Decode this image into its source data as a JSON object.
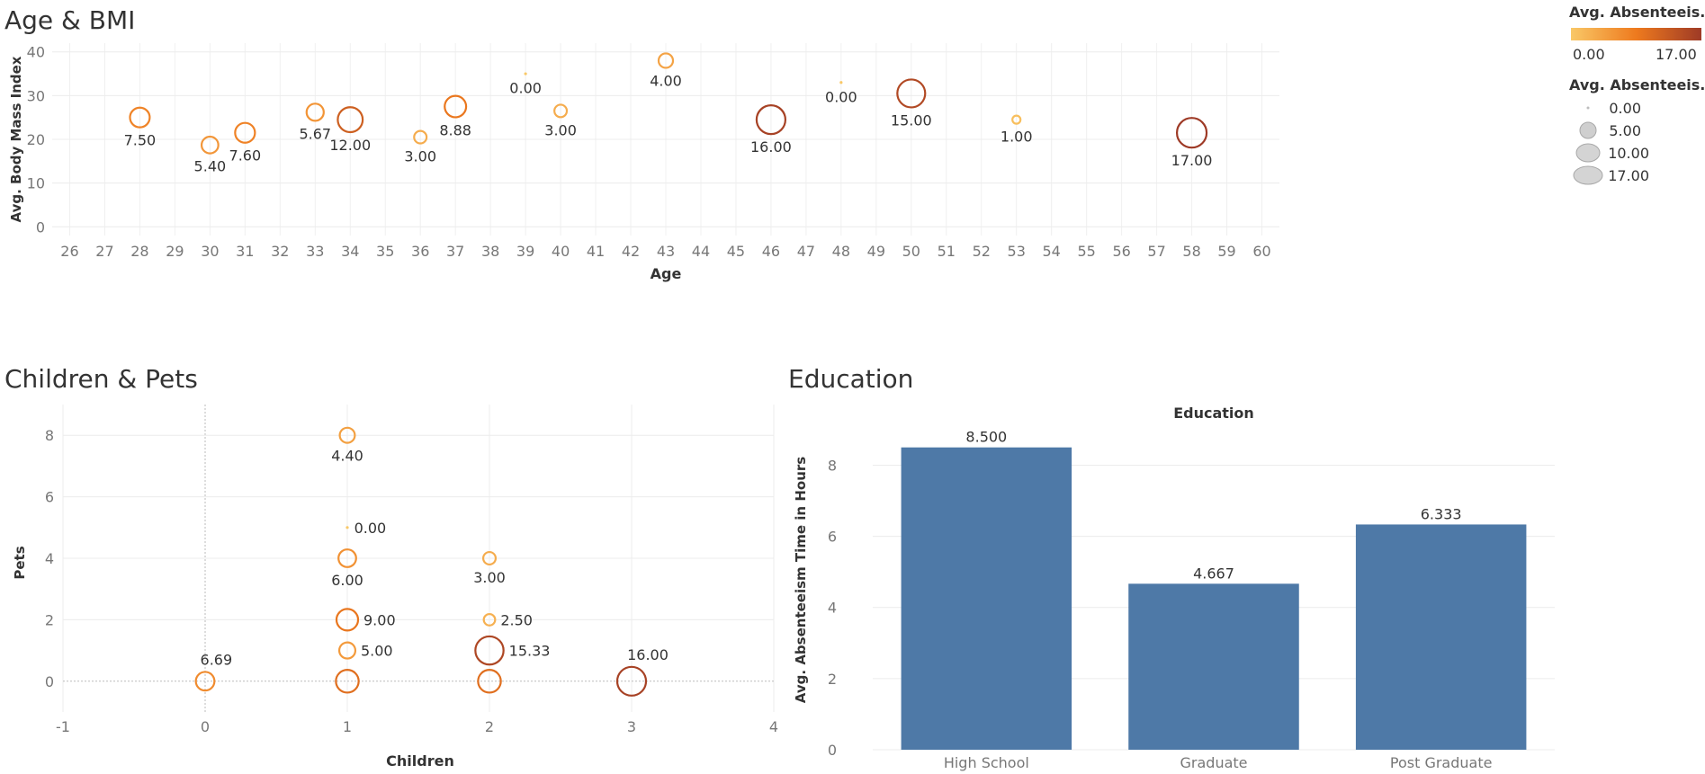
{
  "panes": {
    "age_bmi": {
      "title": "Age & BMI"
    },
    "children_pets": {
      "title": "Children & Pets"
    },
    "education": {
      "title": "Education"
    }
  },
  "legends": {
    "color": {
      "title": "Avg. Absenteeis..",
      "min_label": "0.00",
      "max_label": "17.00",
      "color_low": "#f9c867",
      "color_mid": "#ee7a1e",
      "color_high": "#9e3a26"
    },
    "size": {
      "title": "Avg. Absenteeis..",
      "entries": [
        "0.00",
        "5.00",
        "10.00",
        "17.00"
      ]
    }
  },
  "chart_data": [
    {
      "type": "scatter",
      "title": "Age & BMI",
      "xlabel": "Age",
      "ylabel": "Avg. Body Mass Index",
      "xlim": [
        25.5,
        60.5
      ],
      "ylim": [
        -2,
        42
      ],
      "xticks": [
        26,
        27,
        28,
        29,
        30,
        31,
        32,
        33,
        34,
        35,
        36,
        37,
        38,
        39,
        40,
        41,
        42,
        43,
        44,
        45,
        46,
        47,
        48,
        49,
        50,
        51,
        52,
        53,
        54,
        55,
        56,
        57,
        58,
        59,
        60
      ],
      "yticks": [
        0,
        10,
        20,
        30,
        40
      ],
      "grid": true,
      "size_metric": "Avg. Absenteeism",
      "points": [
        {
          "x": 28,
          "y": 25,
          "v": 7.5,
          "label": "7.50"
        },
        {
          "x": 30,
          "y": 18.7,
          "v": 5.4,
          "label": "5.40"
        },
        {
          "x": 31,
          "y": 21.5,
          "v": 7.6,
          "label": "7.60"
        },
        {
          "x": 33,
          "y": 26.2,
          "v": 5.67,
          "label": "5.67"
        },
        {
          "x": 34,
          "y": 24.5,
          "v": 12.0,
          "label": "12.00"
        },
        {
          "x": 36,
          "y": 20.5,
          "v": 3.0,
          "label": "3.00"
        },
        {
          "x": 37,
          "y": 27.5,
          "v": 8.88,
          "label": "8.88"
        },
        {
          "x": 39,
          "y": 35,
          "v": 0.0,
          "label": "0.00"
        },
        {
          "x": 40,
          "y": 26.5,
          "v": 3.0,
          "label": "3.00"
        },
        {
          "x": 43,
          "y": 38,
          "v": 4.0,
          "label": "4.00"
        },
        {
          "x": 46,
          "y": 24.5,
          "v": 16.0,
          "label": "16.00"
        },
        {
          "x": 48,
          "y": 33,
          "v": 0.0,
          "label": "0.00"
        },
        {
          "x": 50,
          "y": 30.5,
          "v": 15.0,
          "label": "15.00"
        },
        {
          "x": 53,
          "y": 24.5,
          "v": 1.0,
          "label": "1.00"
        },
        {
          "x": 58,
          "y": 21.5,
          "v": 17.0,
          "label": "17.00"
        }
      ]
    },
    {
      "type": "scatter",
      "title": "Children & Pets",
      "xlabel": "Children",
      "ylabel": "Pets",
      "xlim": [
        -1,
        4
      ],
      "ylim": [
        -1,
        9
      ],
      "xticks": [
        -1,
        0,
        1,
        2,
        3,
        4
      ],
      "yticks": [
        0,
        2,
        4,
        6,
        8
      ],
      "grid": true,
      "size_metric": "Avg. Absenteeism",
      "points": [
        {
          "x": 0,
          "y": 0,
          "v": 6.69,
          "label": "6.69",
          "label_pos": "above"
        },
        {
          "x": 1,
          "y": 8,
          "v": 4.4,
          "label": "4.40",
          "label_pos": "below"
        },
        {
          "x": 1,
          "y": 5,
          "v": 0.0,
          "label": "0.00",
          "label_pos": "right"
        },
        {
          "x": 1,
          "y": 4,
          "v": 6.0,
          "label": "6.00",
          "label_pos": "below"
        },
        {
          "x": 1,
          "y": 2,
          "v": 9.0,
          "label": "9.00",
          "label_pos": "right"
        },
        {
          "x": 1,
          "y": 1,
          "v": 5.0,
          "label": "5.00",
          "label_pos": "right"
        },
        {
          "x": 1,
          "y": 0,
          "v": 10.0,
          "label": "",
          "label_pos": "none"
        },
        {
          "x": 2,
          "y": 4,
          "v": 3.0,
          "label": "3.00",
          "label_pos": "below"
        },
        {
          "x": 2,
          "y": 2,
          "v": 2.5,
          "label": "2.50",
          "label_pos": "right"
        },
        {
          "x": 2,
          "y": 1,
          "v": 15.33,
          "label": "15.33",
          "label_pos": "right"
        },
        {
          "x": 2,
          "y": 0,
          "v": 10.0,
          "label": "",
          "label_pos": "none"
        },
        {
          "x": 3,
          "y": 0,
          "v": 16.0,
          "label": "16.00",
          "label_pos": "above"
        }
      ]
    },
    {
      "type": "bar",
      "title": "Education",
      "header": "Education",
      "ylabel": "Avg. Absenteeism Time in Hours",
      "ylim": [
        0,
        9.2
      ],
      "yticks": [
        0,
        2,
        4,
        6,
        8
      ],
      "grid": true,
      "bar_color": "#4e79a7",
      "categories": [
        "High School",
        "Graduate",
        "Post Graduate"
      ],
      "values": [
        8.5,
        4.667,
        6.333
      ],
      "value_labels": [
        "8.500",
        "4.667",
        "6.333"
      ]
    }
  ]
}
